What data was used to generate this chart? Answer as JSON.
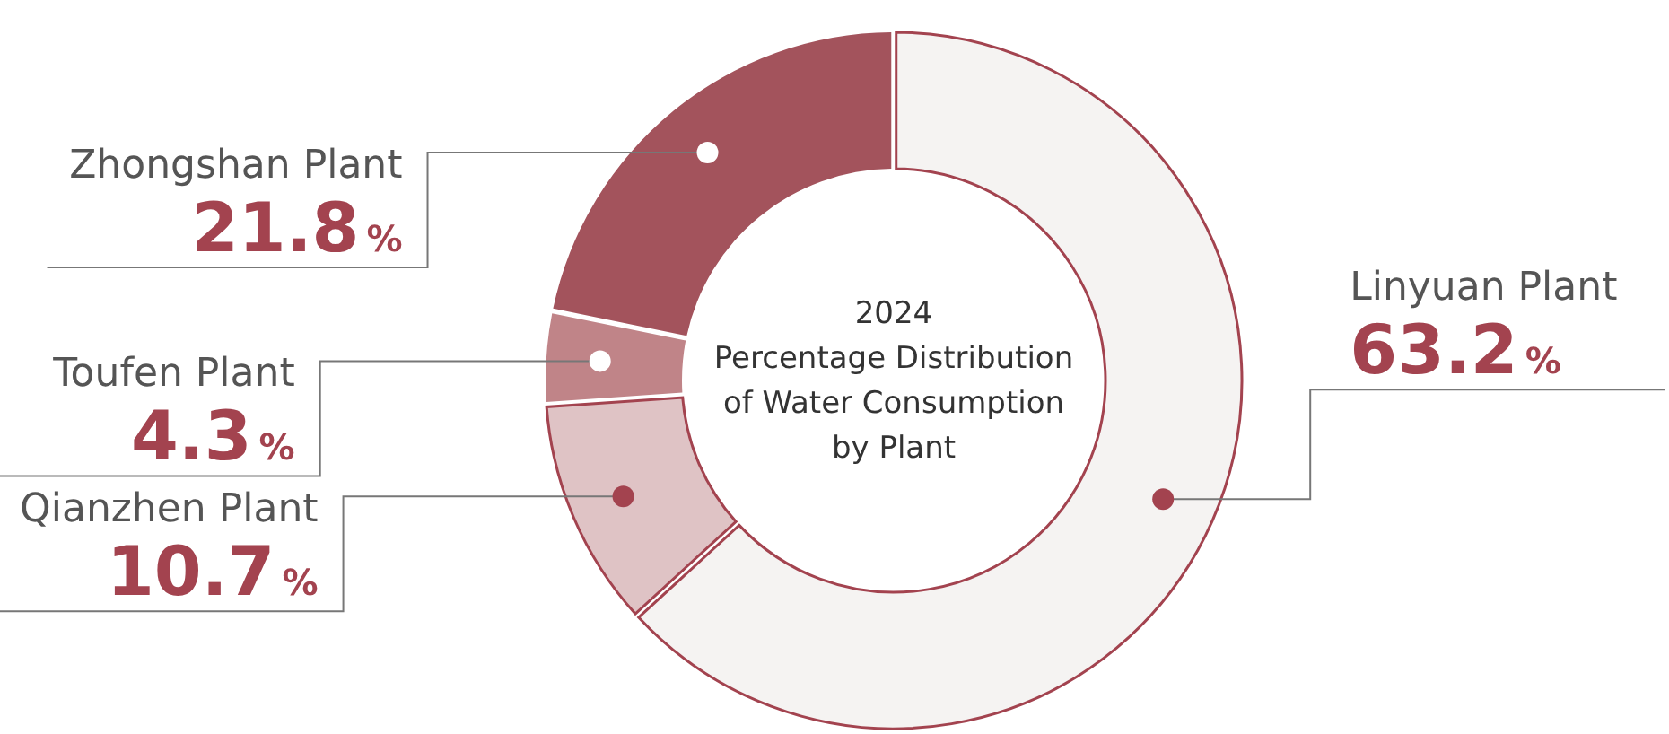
{
  "chart_data": {
    "type": "donut",
    "title": "2024\nPercentage Distribution\nof Water Consumption\nby Plant",
    "categories": [
      "Linyuan Plant",
      "Qianzhen Plant",
      "Toufen Plant",
      "Zhongshan Plant"
    ],
    "values": [
      63.2,
      10.7,
      4.3,
      21.8
    ],
    "value_labels": [
      "63.2%",
      "10.7%",
      "4.3%",
      "21.8%"
    ],
    "colors": [
      "#f5f3f2",
      "#dfc3c5",
      "#c08488",
      "#a3535c"
    ]
  }
}
